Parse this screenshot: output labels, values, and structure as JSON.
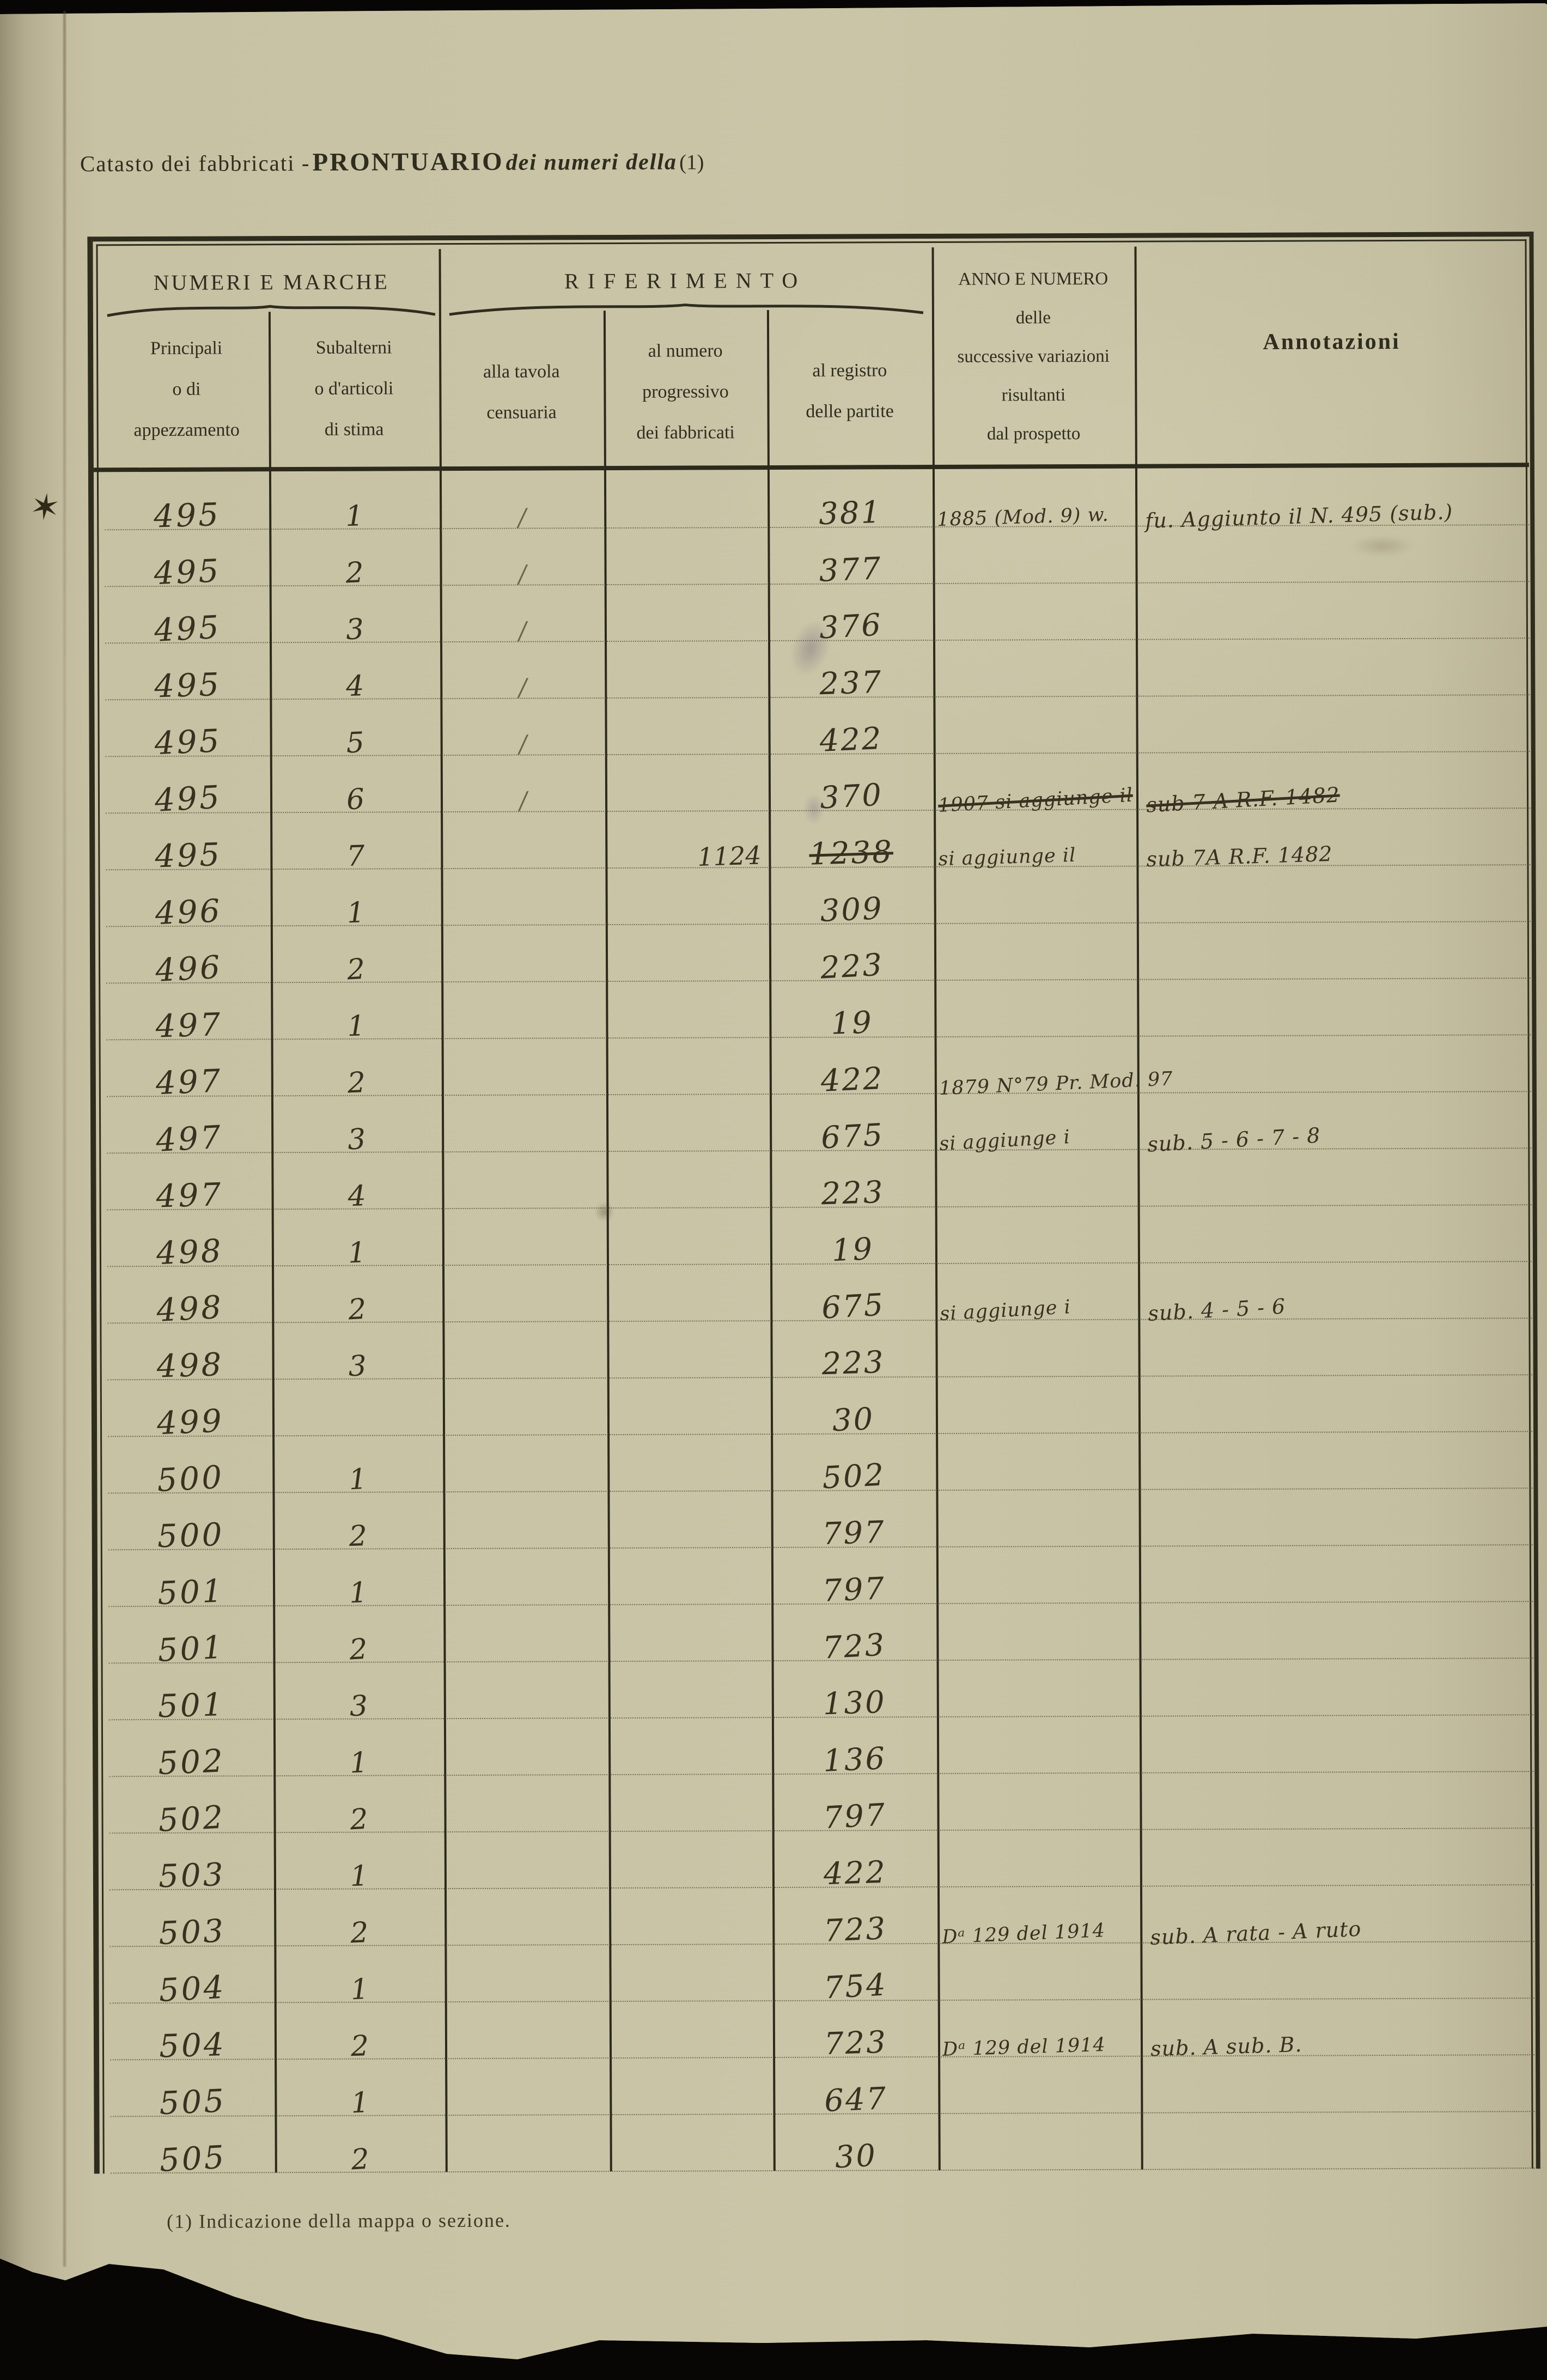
{
  "page": {
    "title_prefix": "Catasto dei fabbricati -",
    "title_main": "PRONTUARIO",
    "title_italic": "dei numeri della",
    "title_ref": "(1)",
    "footnote": "(1) Indicazione della mappa o sezione.",
    "margin_mark": "✶"
  },
  "table": {
    "group_numeri": "NUMERI E MARCHE",
    "group_riferimento": "RIFERIMENTO",
    "col_principali": "Principali\no di\nappezzamento",
    "col_subalterni": "Subalterni\no d'articoli\ndi stima",
    "col_tavola": "alla tavola\ncensuaria",
    "col_progressivo": "al numero\nprogressivo\ndei fabbricati",
    "col_registro": "al registro\ndelle partite",
    "col_anno": "ANNO E NUMERO\ndelle\nsuccessive variazioni\nrisultanti\ndal prospetto",
    "col_annotazioni": "Annotazioni",
    "rows": [
      {
        "principale": "495",
        "sub": "1",
        "tavola": "/",
        "registro": "381",
        "anno": "1885 (Mod. 9) w.",
        "nota": "fu. Aggiunto il N. 495 (sub.)"
      },
      {
        "principale": "495",
        "sub": "2",
        "tavola": "/",
        "registro": "377"
      },
      {
        "principale": "495",
        "sub": "3",
        "tavola": "/",
        "registro": "376"
      },
      {
        "principale": "495",
        "sub": "4",
        "tavola": "/",
        "registro": "237"
      },
      {
        "principale": "495",
        "sub": "5",
        "tavola": "/",
        "registro": "422"
      },
      {
        "principale": "495",
        "sub": "6",
        "tavola": "/",
        "registro": "370",
        "anno": "1907 si aggiunge il",
        "anno_struck": true,
        "nota": "sub 7-A  R.F. 1482",
        "nota_struck": true
      },
      {
        "principale": "495",
        "sub": "7",
        "progressivo": "1124",
        "registro": "1238",
        "registro_struck": true,
        "anno": "si aggiunge il",
        "nota": "sub 7A  R.F. 1482"
      },
      {
        "principale": "496",
        "sub": "1",
        "registro": "309"
      },
      {
        "principale": "496",
        "sub": "2",
        "registro": "223"
      },
      {
        "principale": "497",
        "sub": "1",
        "registro": "19"
      },
      {
        "principale": "497",
        "sub": "2",
        "registro": "422",
        "anno": "1879 N°79 Pr. Mod. 97"
      },
      {
        "principale": "497",
        "sub": "3",
        "registro": "675",
        "anno": "si aggiunge i",
        "nota": "sub. 5 - 6 - 7 - 8"
      },
      {
        "principale": "497",
        "sub": "4",
        "registro": "223"
      },
      {
        "principale": "498",
        "sub": "1",
        "registro": "19"
      },
      {
        "principale": "498",
        "sub": "2",
        "registro": "675",
        "anno": "si aggiunge i",
        "nota": "sub. 4 - 5 - 6"
      },
      {
        "principale": "498",
        "sub": "3",
        "registro": "223"
      },
      {
        "principale": "499",
        "registro": "30"
      },
      {
        "principale": "500",
        "sub": "1",
        "registro": "502"
      },
      {
        "principale": "500",
        "sub": "2",
        "registro": "797"
      },
      {
        "principale": "501",
        "sub": "1",
        "registro": "797"
      },
      {
        "principale": "501",
        "sub": "2",
        "registro": "723"
      },
      {
        "principale": "501",
        "sub": "3",
        "registro": "130"
      },
      {
        "principale": "502",
        "sub": "1",
        "registro": "136"
      },
      {
        "principale": "502",
        "sub": "2",
        "registro": "797"
      },
      {
        "principale": "503",
        "sub": "1",
        "registro": "422"
      },
      {
        "principale": "503",
        "sub": "2",
        "registro": "723",
        "anno": "Dᵃ 129 del 1914",
        "nota": "sub. A rata - A ruto"
      },
      {
        "principale": "504",
        "sub": "1",
        "registro": "754"
      },
      {
        "principale": "504",
        "sub": "2",
        "registro": "723",
        "anno": "Dᵃ 129 del 1914",
        "nota": "sub. A  sub. B."
      },
      {
        "principale": "505",
        "sub": "1",
        "registro": "647"
      },
      {
        "principale": "505",
        "sub": "2",
        "registro": "30"
      }
    ]
  }
}
